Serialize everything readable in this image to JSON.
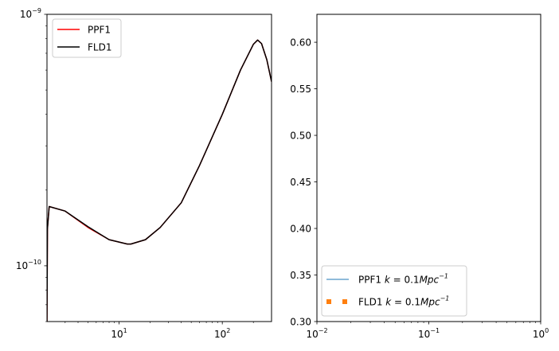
{
  "chart_data": [
    {
      "type": "line",
      "xscale": "log",
      "yscale": "log",
      "xlim": [
        2,
        300
      ],
      "ylim": [
        6e-11,
        1e-09
      ],
      "xtick_labels": [
        {
          "value": 10,
          "base": "10",
          "exp": "1"
        },
        {
          "value": 100,
          "base": "10",
          "exp": "2"
        }
      ],
      "ytick_labels": [
        {
          "value": 1e-10,
          "base": "10",
          "exp": "−10"
        },
        {
          "value": 1e-09,
          "base": "10",
          "exp": "−9"
        }
      ],
      "legend_position": "upper-left",
      "series": [
        {
          "name": "PPF1",
          "color": "#ff0000",
          "linewidth": 1.5,
          "x": [
            2,
            2.02,
            2.1,
            3,
            5,
            8,
            12,
            13,
            18,
            25,
            40,
            60,
            100,
            150,
            200,
            220,
            240,
            270,
            300
          ],
          "y": [
            6e-11,
            1.4e-10,
            1.72e-10,
            1.65e-10,
            1.42e-10,
            1.27e-10,
            1.22e-10,
            1.22e-10,
            1.27e-10,
            1.42e-10,
            1.78e-10,
            2.5e-10,
            4e-10,
            6e-10,
            7.6e-10,
            7.9e-10,
            7.65e-10,
            6.6e-10,
            5.4e-10
          ]
        },
        {
          "name": "FLD1",
          "color": "#000000",
          "linewidth": 1.5,
          "x": [
            2,
            2.02,
            2.1,
            3,
            5,
            8,
            12,
            13,
            18,
            25,
            40,
            60,
            100,
            150,
            200,
            220,
            240,
            270,
            300
          ],
          "y": [
            6e-11,
            1.4e-10,
            1.72e-10,
            1.65e-10,
            1.43e-10,
            1.27e-10,
            1.22e-10,
            1.22e-10,
            1.27e-10,
            1.42e-10,
            1.78e-10,
            2.5e-10,
            4e-10,
            6e-10,
            7.6e-10,
            7.9e-10,
            7.65e-10,
            6.6e-10,
            5.4e-10
          ]
        }
      ]
    },
    {
      "type": "line",
      "xscale": "log",
      "yscale": "linear",
      "xlim": [
        0.01,
        1
      ],
      "ylim": [
        0.3,
        0.63
      ],
      "xtick_labels": [
        {
          "value": 0.01,
          "base": "10",
          "exp": "−2"
        },
        {
          "value": 0.1,
          "base": "10",
          "exp": "−1"
        },
        {
          "value": 1,
          "base": "10",
          "exp": "0"
        }
      ],
      "ytick_labels": [
        "0.30",
        "0.35",
        "0.40",
        "0.45",
        "0.50",
        "0.55",
        "0.60"
      ],
      "legend_position": "lower-left",
      "series": [
        {
          "name_main": "PPF1 ",
          "name_k": "k",
          "name_eq": " = 0.1",
          "name_unit": "Mpc",
          "name_exp": "−1",
          "color": "#1f77b4",
          "style": "solid",
          "x": [],
          "y": []
        },
        {
          "name_main": "FLD1 ",
          "name_k": "k",
          "name_eq": " = 0.1",
          "name_unit": "Mpc",
          "name_exp": "−1",
          "color": "#ff7f0e",
          "style": "dotted",
          "x": [],
          "y": []
        }
      ]
    }
  ]
}
